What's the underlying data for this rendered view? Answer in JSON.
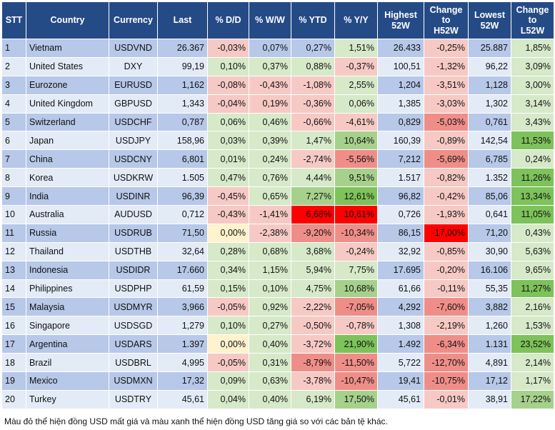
{
  "headers": [
    "STT",
    "Country",
    "Currency",
    "Last",
    "% D/D",
    "% W/W",
    "% YTD",
    "% Y/Y",
    "Highest\n52W",
    "Change\nto\nH52W",
    "Lowest\n52W",
    "Change\nto\nL52W"
  ],
  "rows": [
    {
      "stt": "1",
      "country": "Vietnam",
      "currency": "USDVND",
      "last": "26.367",
      "dd": "-0,03%",
      "ww": "0,07%",
      "ytd": "0,27%",
      "yy": "1,51%",
      "high": "26.433",
      "to_high": "-0,25%",
      "low": "25.887",
      "to_low": "1,85%"
    },
    {
      "stt": "2",
      "country": "United States",
      "currency": "DXY",
      "last": "99,19",
      "dd": "0,10%",
      "ww": "0,37%",
      "ytd": "0,88%",
      "yy": "-0,37%",
      "high": "100,51",
      "to_high": "-1,32%",
      "low": "96,22",
      "to_low": "3,09%"
    },
    {
      "stt": "3",
      "country": "Eurozone",
      "currency": "EURUSD",
      "last": "1,162",
      "dd": "-0,08%",
      "ww": "-0,43%",
      "ytd": "-1,08%",
      "yy": "2,55%",
      "high": "1,204",
      "to_high": "-3,51%",
      "low": "1,128",
      "to_low": "3,00%"
    },
    {
      "stt": "4",
      "country": "United Kingdom",
      "currency": "GBPUSD",
      "last": "1,343",
      "dd": "-0,04%",
      "ww": "0,19%",
      "ytd": "-0,36%",
      "yy": "0,06%",
      "high": "1,385",
      "to_high": "-3,03%",
      "low": "1,302",
      "to_low": "3,14%"
    },
    {
      "stt": "5",
      "country": "Switzerland",
      "currency": "USDCHF",
      "last": "0,787",
      "dd": "0,06%",
      "ww": "0,46%",
      "ytd": "-0,66%",
      "yy": "-4,61%",
      "high": "0,829",
      "to_high": "-5,03%",
      "low": "0,761",
      "to_low": "3,43%"
    },
    {
      "stt": "6",
      "country": "Japan",
      "currency": "USDJPY",
      "last": "158,96",
      "dd": "0,03%",
      "ww": "0,39%",
      "ytd": "1,47%",
      "yy": "10,64%",
      "high": "160,39",
      "to_high": "-0,89%",
      "low": "142,54",
      "to_low": "11,53%"
    },
    {
      "stt": "7",
      "country": "China",
      "currency": "USDCNY",
      "last": "6,801",
      "dd": "0,01%",
      "ww": "0,24%",
      "ytd": "-2,74%",
      "yy": "-5,56%",
      "high": "7,212",
      "to_high": "-5,69%",
      "low": "6,785",
      "to_low": "0,24%"
    },
    {
      "stt": "8",
      "country": "Korea",
      "currency": "USDKRW",
      "last": "1.505",
      "dd": "0,47%",
      "ww": "0,76%",
      "ytd": "4,44%",
      "yy": "9,51%",
      "high": "1.517",
      "to_high": "-0,82%",
      "low": "1.352",
      "to_low": "11,26%"
    },
    {
      "stt": "9",
      "country": "India",
      "currency": "USDINR",
      "last": "96,39",
      "dd": "-0,45%",
      "ww": "0,65%",
      "ytd": "7,27%",
      "yy": "12,61%",
      "high": "96,82",
      "to_high": "-0,42%",
      "low": "85,06",
      "to_low": "13,34%"
    },
    {
      "stt": "10",
      "country": "Australia",
      "currency": "AUDUSD",
      "last": "0,712",
      "dd": "-0,43%",
      "ww": "-1,41%",
      "ytd": "6,68%",
      "yy": "10,61%",
      "high": "0,726",
      "to_high": "-1,93%",
      "low": "0,641",
      "to_low": "11,05%"
    },
    {
      "stt": "11",
      "country": "Russia",
      "currency": "USDRUB",
      "last": "71,50",
      "dd": "0,00%",
      "ww": "-2,38%",
      "ytd": "-9,20%",
      "yy": "-10,34%",
      "high": "86,15",
      "to_high": "-17,00%",
      "low": "71,20",
      "to_low": "0,43%"
    },
    {
      "stt": "12",
      "country": "Thailand",
      "currency": "USDTHB",
      "last": "32,64",
      "dd": "0,28%",
      "ww": "0,68%",
      "ytd": "3,68%",
      "yy": "-0,24%",
      "high": "32,92",
      "to_high": "-0,85%",
      "low": "30,90",
      "to_low": "5,63%"
    },
    {
      "stt": "13",
      "country": "Indonesia",
      "currency": "USDIDR",
      "last": "17.660",
      "dd": "0,34%",
      "ww": "1,15%",
      "ytd": "5,94%",
      "yy": "7,75%",
      "high": "17.695",
      "to_high": "-0,20%",
      "low": "16.106",
      "to_low": "9,65%"
    },
    {
      "stt": "14",
      "country": "Philippines",
      "currency": "USDPHP",
      "last": "61,59",
      "dd": "0,15%",
      "ww": "0,10%",
      "ytd": "4,75%",
      "yy": "10,68%",
      "high": "61,66",
      "to_high": "-0,11%",
      "low": "55,35",
      "to_low": "11,27%"
    },
    {
      "stt": "15",
      "country": "Malaysia",
      "currency": "USDMYR",
      "last": "3,966",
      "dd": "-0,05%",
      "ww": "0,92%",
      "ytd": "-2,22%",
      "yy": "-7,05%",
      "high": "4,292",
      "to_high": "-7,60%",
      "low": "3,882",
      "to_low": "2,16%"
    },
    {
      "stt": "16",
      "country": "Singapore",
      "currency": "USDSGD",
      "last": "1,279",
      "dd": "0,10%",
      "ww": "0,27%",
      "ytd": "-0,50%",
      "yy": "-0,78%",
      "high": "1,308",
      "to_high": "-2,19%",
      "low": "1,260",
      "to_low": "1,53%"
    },
    {
      "stt": "17",
      "country": "Argentina",
      "currency": "USDARS",
      "last": "1.397",
      "dd": "0,00%",
      "ww": "0,40%",
      "ytd": "-3,72%",
      "yy": "21,90%",
      "high": "1.492",
      "to_high": "-6,34%",
      "low": "1.131",
      "to_low": "23,52%"
    },
    {
      "stt": "18",
      "country": "Brazil",
      "currency": "USDBRL",
      "last": "4,995",
      "dd": "-0,05%",
      "ww": "0,31%",
      "ytd": "-8,79%",
      "yy": "-11,50%",
      "high": "5,722",
      "to_high": "-12,70%",
      "low": "4,891",
      "to_low": "2,14%"
    },
    {
      "stt": "19",
      "country": "Mexico",
      "currency": "USDMXN",
      "last": "17,32",
      "dd": "0,09%",
      "ww": "0,63%",
      "ytd": "-3,78%",
      "yy": "-10,47%",
      "high": "19,41",
      "to_high": "-10,75%",
      "low": "17,12",
      "to_low": "1,17%"
    },
    {
      "stt": "20",
      "country": "Turkey",
      "currency": "USDTRY",
      "last": "45,61",
      "dd": "0,04%",
      "ww": "0,40%",
      "ytd": "6,19%",
      "yy": "17,50%",
      "high": "45,61",
      "to_high": "-0,01%",
      "low": "38,91",
      "to_low": "17,22%"
    }
  ],
  "highlights": {
    "0": {
      "dd": "neg1",
      "yy": "pos1",
      "to_high": "neg1",
      "to_low": "pos1"
    },
    "1": {
      "dd": "pos1",
      "ww": "pos1",
      "ytd": "pos1",
      "yy": "neg1",
      "to_high": "neg1",
      "to_low": "pos1"
    },
    "2": {
      "dd": "neg1",
      "ww": "neg1",
      "ytd": "neg1",
      "yy": "pos1",
      "to_high": "neg1",
      "to_low": "pos1"
    },
    "3": {
      "dd": "neg1",
      "ww": "neg1",
      "ytd": "neg1",
      "yy": "pos1",
      "to_high": "neg1",
      "to_low": "pos1"
    },
    "4": {
      "dd": "pos1",
      "ww": "pos1",
      "ytd": "neg1",
      "yy": "neg1",
      "to_high": "neg2",
      "to_low": "pos1"
    },
    "5": {
      "dd": "pos1",
      "ww": "pos1",
      "ytd": "pos1",
      "yy": "pos2",
      "to_high": "neg1",
      "to_low": "pos3"
    },
    "6": {
      "dd": "pos1",
      "ww": "pos1",
      "ytd": "neg1",
      "yy": "neg2",
      "to_high": "neg2",
      "to_low": "pos1"
    },
    "7": {
      "dd": "pos1",
      "ww": "pos1",
      "ytd": "pos1",
      "yy": "pos2",
      "to_high": "neg1",
      "to_low": "pos3"
    },
    "8": {
      "dd": "neg1",
      "ww": "pos1",
      "ytd": "pos2",
      "yy": "pos3",
      "to_high": "neg1",
      "to_low": "pos3"
    },
    "9": {
      "dd": "neg1",
      "ww": "neg1",
      "ytd": "neg3",
      "yy": "neg3",
      "to_high": "neg1",
      "to_low": "pos3"
    },
    "10": {
      "dd": "zero",
      "ww": "neg1",
      "ytd": "neg2",
      "yy": "neg2",
      "to_high": "neg3",
      "to_low": "pos1"
    },
    "11": {
      "dd": "pos1",
      "ww": "pos1",
      "ytd": "pos1",
      "yy": "neg1",
      "to_high": "neg1",
      "to_low": "pos1"
    },
    "12": {
      "dd": "pos1",
      "ww": "pos1",
      "ytd": "pos1",
      "yy": "pos1",
      "to_high": "neg1",
      "to_low": "pos1"
    },
    "13": {
      "dd": "pos1",
      "ww": "pos1",
      "ytd": "pos1",
      "yy": "pos2",
      "to_high": "neg1",
      "to_low": "pos3"
    },
    "14": {
      "dd": "neg1",
      "ww": "pos1",
      "ytd": "neg1",
      "yy": "neg2",
      "to_high": "neg2",
      "to_low": "pos1"
    },
    "15": {
      "dd": "pos1",
      "ww": "pos1",
      "ytd": "neg1",
      "yy": "neg1",
      "to_high": "neg1",
      "to_low": "pos1"
    },
    "16": {
      "dd": "zero",
      "ww": "pos1",
      "ytd": "neg1",
      "yy": "pos3",
      "to_high": "neg2",
      "to_low": "pos3"
    },
    "17": {
      "dd": "neg1",
      "ww": "pos1",
      "ytd": "neg2",
      "yy": "neg2",
      "to_high": "neg2",
      "to_low": "pos1"
    },
    "18": {
      "dd": "pos1",
      "ww": "pos1",
      "ytd": "neg1",
      "yy": "neg2",
      "to_high": "neg2",
      "to_low": "pos1"
    },
    "19": {
      "dd": "pos1",
      "ww": "pos1",
      "ytd": "pos1",
      "yy": "pos2",
      "to_high": "neg1",
      "to_low": "pos2"
    }
  },
  "footnote": "Màu đỏ thể hiện đồng USD mất giá và màu xanh thể hiện đồng USD tăng giá so với các bản tệ khác."
}
